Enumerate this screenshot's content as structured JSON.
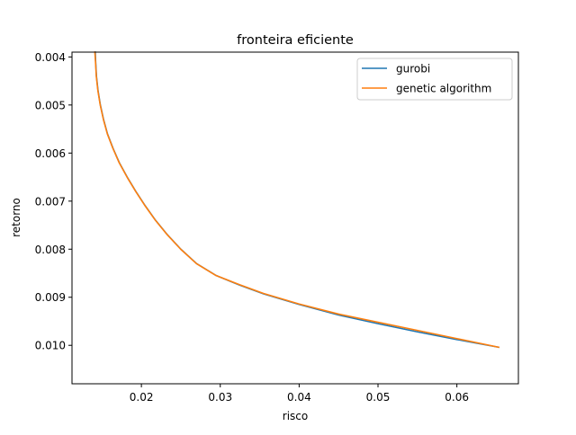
{
  "chart_data": {
    "type": "line",
    "title": "fronteira eficiente",
    "xlabel": "risco",
    "ylabel": "retorno",
    "xlim": [
      0.0112,
      0.0678
    ],
    "ylim": [
      0.0039,
      0.0108
    ],
    "y_inverted": true,
    "grid": false,
    "legend_position": "top-right",
    "x_ticks": [
      {
        "value": 0.02,
        "label": "0.02"
      },
      {
        "value": 0.03,
        "label": "0.03"
      },
      {
        "value": 0.04,
        "label": "0.04"
      },
      {
        "value": 0.05,
        "label": "0.05"
      },
      {
        "value": 0.06,
        "label": "0.06"
      }
    ],
    "y_ticks": [
      {
        "value": 0.004,
        "label": "0.004"
      },
      {
        "value": 0.005,
        "label": "0.005"
      },
      {
        "value": 0.006,
        "label": "0.006"
      },
      {
        "value": 0.007,
        "label": "0.007"
      },
      {
        "value": 0.008,
        "label": "0.008"
      },
      {
        "value": 0.009,
        "label": "0.009"
      },
      {
        "value": 0.01,
        "label": "0.010"
      }
    ],
    "series": [
      {
        "name": "gurobi",
        "color": "#1f77b4",
        "points": [
          [
            0.01415,
            0.0039
          ],
          [
            0.0142,
            0.0041
          ],
          [
            0.0143,
            0.0044
          ],
          [
            0.0145,
            0.0047
          ],
          [
            0.0148,
            0.005
          ],
          [
            0.0152,
            0.0053
          ],
          [
            0.0157,
            0.0056
          ],
          [
            0.0164,
            0.0059
          ],
          [
            0.0172,
            0.0062
          ],
          [
            0.0182,
            0.0065
          ],
          [
            0.0193,
            0.0068
          ],
          [
            0.0205,
            0.0071
          ],
          [
            0.0218,
            0.0074
          ],
          [
            0.0233,
            0.0077
          ],
          [
            0.025,
            0.008
          ],
          [
            0.027,
            0.0083
          ],
          [
            0.0295,
            0.00855
          ],
          [
            0.0325,
            0.00875
          ],
          [
            0.0355,
            0.00893
          ],
          [
            0.04,
            0.00915
          ],
          [
            0.045,
            0.00937
          ],
          [
            0.05,
            0.00955
          ],
          [
            0.055,
            0.00972
          ],
          [
            0.06,
            0.00988
          ],
          [
            0.0653,
            0.01004
          ]
        ]
      },
      {
        "name": "genetic algorithm",
        "color": "#ff7f0e",
        "points": [
          [
            0.0141,
            0.0039
          ],
          [
            0.01418,
            0.0041
          ],
          [
            0.01428,
            0.0044
          ],
          [
            0.01448,
            0.0047
          ],
          [
            0.01478,
            0.005
          ],
          [
            0.01518,
            0.0053
          ],
          [
            0.01568,
            0.0056
          ],
          [
            0.01638,
            0.0059
          ],
          [
            0.01718,
            0.0062
          ],
          [
            0.01818,
            0.0065
          ],
          [
            0.01928,
            0.0068
          ],
          [
            0.02048,
            0.0071
          ],
          [
            0.02178,
            0.0074
          ],
          [
            0.02328,
            0.0077
          ],
          [
            0.02498,
            0.008
          ],
          [
            0.02698,
            0.0083
          ],
          [
            0.02948,
            0.00855
          ],
          [
            0.03248,
            0.00874
          ],
          [
            0.03548,
            0.00892
          ],
          [
            0.04,
            0.00914
          ],
          [
            0.045,
            0.00935
          ],
          [
            0.05,
            0.00952
          ],
          [
            0.055,
            0.00969
          ],
          [
            0.06,
            0.00986
          ],
          [
            0.0653,
            0.01004
          ]
        ]
      }
    ]
  }
}
